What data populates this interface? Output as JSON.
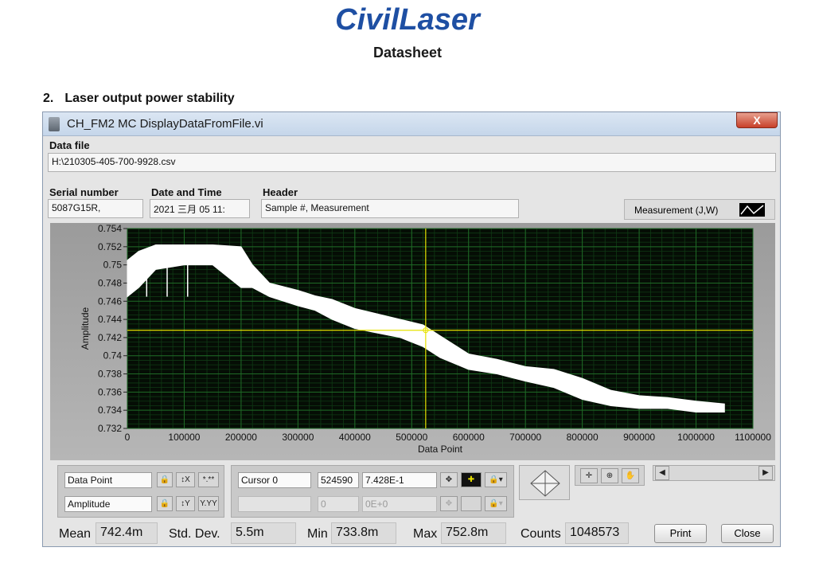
{
  "header": {
    "logo_text": "CivilLaser",
    "subtitle": "Datasheet",
    "section_number": "2.",
    "section_title": "Laser output power stability"
  },
  "window": {
    "title": "CH_FM2 MC DisplayDataFromFile.vi",
    "close_label": "X",
    "data_file_label": "Data file",
    "data_file_value": "H:\\210305-405-700-9928.csv",
    "serial_label": "Serial number",
    "serial_value": "5087G15R,",
    "datetime_label": "Date and Time",
    "datetime_value": "2021 三月 05 11:",
    "header_label": "Header",
    "header_value": "Sample #, Measurement",
    "measurement_label": "Measurement (J,W)"
  },
  "cursor_panel": {
    "x_name": "Data Point",
    "y_name": "Amplitude",
    "x_fmt": "*.**",
    "y_fmt": "Y.YY",
    "cursor_name": "Cursor 0",
    "cursor_x": "524590",
    "cursor_y": "7.428E-1",
    "cursor2_x": "0",
    "cursor2_y": "0E+0"
  },
  "stats": {
    "mean_label": "Mean",
    "mean_value": "742.4m",
    "std_label": "Std. Dev.",
    "std_value": "5.5m",
    "min_label": "Min",
    "min_value": "733.8m",
    "max_label": "Max",
    "max_value": "752.8m",
    "counts_label": "Counts",
    "counts_value": "1048573",
    "print_label": "Print",
    "close_label": "Close"
  },
  "chart_data": {
    "type": "line",
    "xlabel": "Data Point",
    "ylabel": "Amplitude",
    "xlim": [
      0,
      1100000
    ],
    "ylim": [
      0.732,
      0.754
    ],
    "x_ticks": [
      "0",
      "100000",
      "200000",
      "300000",
      "400000",
      "500000",
      "600000",
      "700000",
      "800000",
      "900000",
      "1000000",
      "1100000"
    ],
    "y_ticks": [
      "0.732",
      "0.734",
      "0.736",
      "0.738",
      "0.74",
      "0.742",
      "0.744",
      "0.746",
      "0.748",
      "0.75",
      "0.752",
      "0.754"
    ],
    "grid": true,
    "cursor": {
      "x": 524590,
      "y": 0.7428
    },
    "series": [
      {
        "x": [
          0,
          20000,
          50000,
          100000,
          150000,
          200000,
          220000,
          250000,
          300000,
          330000,
          360000,
          400000,
          440000,
          480000,
          520000,
          550000,
          600000,
          650000,
          700000,
          750000,
          800000,
          850000,
          900000,
          950000,
          1000000,
          1050000
        ],
        "y": [
          0.7495,
          0.7505,
          0.7512,
          0.7515,
          0.7515,
          0.7512,
          0.749,
          0.7475,
          0.7465,
          0.746,
          0.7455,
          0.7445,
          0.744,
          0.743,
          0.7425,
          0.741,
          0.7395,
          0.739,
          0.738,
          0.7375,
          0.7365,
          0.7355,
          0.735,
          0.735,
          0.7345,
          0.7343
        ],
        "min": [
          0.7465,
          0.7475,
          0.7495,
          0.75,
          0.75,
          0.7475,
          0.7475,
          0.7465,
          0.7455,
          0.745,
          0.744,
          0.743,
          0.7425,
          0.742,
          0.741,
          0.7398,
          0.7385,
          0.738,
          0.7372,
          0.7365,
          0.7352,
          0.7345,
          0.7342,
          0.7342,
          0.7338,
          0.7338
        ],
        "max": [
          0.7505,
          0.7515,
          0.7522,
          0.7522,
          0.7522,
          0.752,
          0.75,
          0.748,
          0.7472,
          0.7466,
          0.7462,
          0.7452,
          0.7446,
          0.744,
          0.7434,
          0.7422,
          0.7402,
          0.7396,
          0.7388,
          0.7385,
          0.7375,
          0.7362,
          0.7356,
          0.7354,
          0.735,
          0.7347
        ]
      }
    ]
  },
  "icons": {
    "window_icon": "labview-vi-icon",
    "lock": "lock-icon",
    "move": "move-cursor-icon",
    "zoom": "zoom-icon",
    "pan": "pan-hand-icon",
    "diamond": "cursor-movement-icon"
  }
}
